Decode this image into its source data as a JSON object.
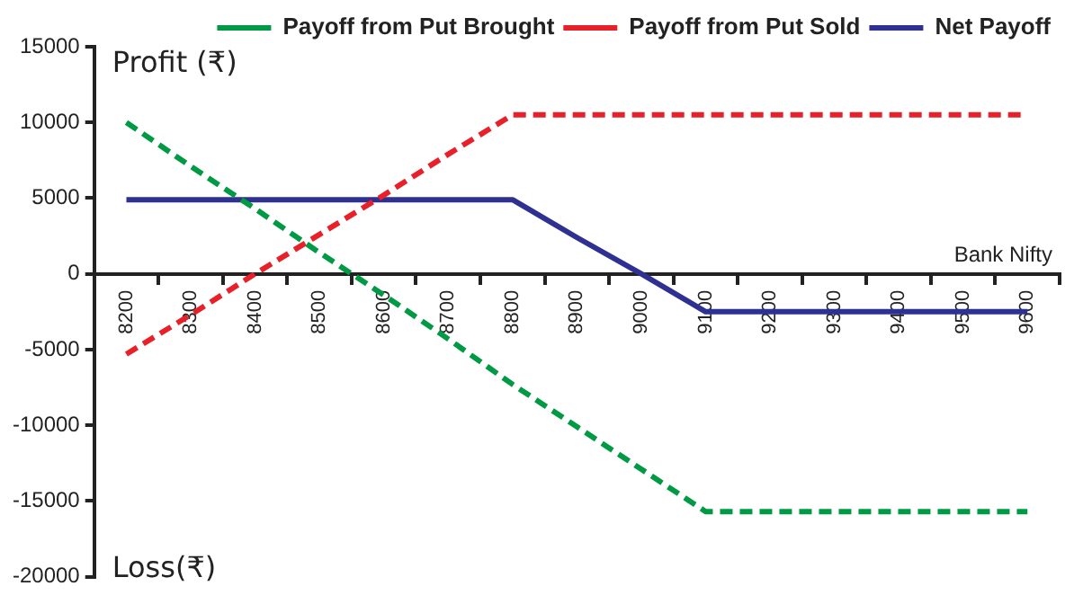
{
  "chart_data": {
    "type": "line",
    "xlabel": "Bank Nifty",
    "annotations": [
      "Profit (₹)",
      "Loss(₹)"
    ],
    "categories": [
      "8200",
      "8300",
      "8400",
      "8500",
      "8600",
      "8700",
      "8800",
      "8900",
      "9000",
      "9100",
      "9200",
      "9300",
      "9400",
      "9500",
      "9600"
    ],
    "series": [
      {
        "name": "Payoff from Put Brought",
        "color": "#009a44",
        "line_style": "dashed",
        "values": [
          10000,
          7100,
          4300,
          1400,
          -1400,
          -4300,
          -7300,
          -10100,
          -12900,
          -15700,
          -15700,
          -15700,
          -15700,
          -15700,
          -15700
        ]
      },
      {
        "name": "Payoff from Put Sold",
        "color": "#e8202a",
        "line_style": "dashed",
        "values": [
          -5300,
          -2700,
          0,
          2600,
          5200,
          7900,
          10500,
          10500,
          10500,
          10500,
          10500,
          10500,
          10500,
          10500,
          10500
        ]
      },
      {
        "name": "Net Payoff",
        "color": "#2e3192",
        "line_style": "solid",
        "values": [
          4900,
          4900,
          4900,
          4900,
          4900,
          4900,
          4900,
          2400,
          0,
          -2500,
          -2500,
          -2500,
          -2500,
          -2500,
          -2500
        ]
      }
    ],
    "ylim": [
      -20000,
      15000
    ],
    "yticks": [
      -20000,
      -15000,
      -10000,
      -5000,
      0,
      5000,
      10000,
      15000
    ],
    "legend": "top right",
    "marker": "none"
  }
}
